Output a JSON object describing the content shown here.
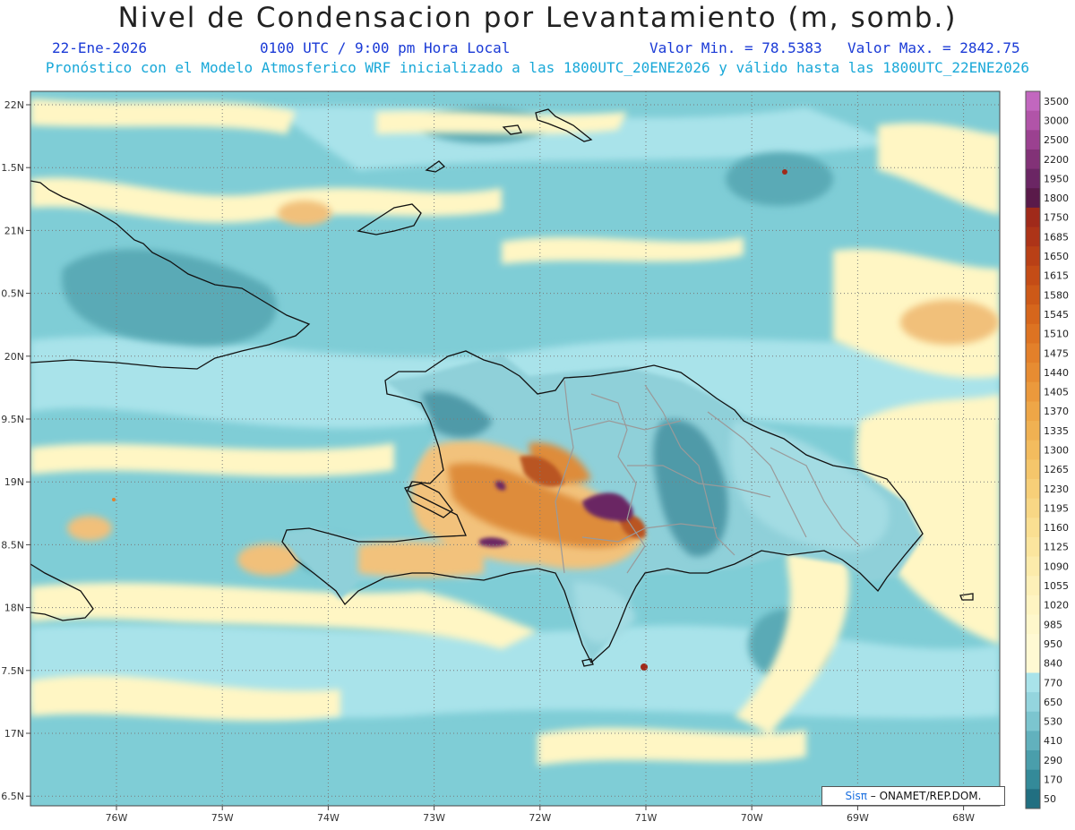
{
  "header": {
    "title": "Nivel de Condensacion por Levantamiento (m, somb.)",
    "date": "22-Ene-2026",
    "time": "0100 UTC / 9:00 pm Hora Local",
    "valor_min": "Valor Min. = 78.5383",
    "valor_max": "Valor Max. = 2842.75",
    "forecast_note": "Pronóstico con el Modelo Atmosferico WRF inicializado a las 1800UTC_20ENE2026 y válido hasta las  1800UTC_22ENE2026"
  },
  "map": {
    "lat_labels": [
      "22N",
      "1.5N",
      "21N",
      "0.5N",
      "20N",
      "9.5N",
      "19N",
      "8.5N",
      "18N",
      "7.5N",
      "17N",
      "6.5N"
    ],
    "lon_labels": [
      "76W",
      "75W",
      "74W",
      "73W",
      "72W",
      "71W",
      "70W",
      "69W",
      "68W"
    ],
    "ocean_color": "#7fcdd6",
    "land_outline_color": "#111111",
    "province_border_color": "#9a9a9a"
  },
  "colorbar": {
    "levels": [
      "3500",
      "3000",
      "2500",
      "2200",
      "1950",
      "1800",
      "1750",
      "1685",
      "1650",
      "1615",
      "1580",
      "1545",
      "1510",
      "1475",
      "1440",
      "1405",
      "1370",
      "1335",
      "1300",
      "1265",
      "1230",
      "1195",
      "1160",
      "1125",
      "1090",
      "1055",
      "1020",
      "985",
      "950",
      "840",
      "770",
      "650",
      "530",
      "410",
      "290",
      "170",
      "50"
    ],
    "colors": [
      "#c267bf",
      "#b154a8",
      "#9b4190",
      "#823277",
      "#6b2664",
      "#5a1a4a",
      "#a02a1a",
      "#ad3418",
      "#b94016",
      "#c44c16",
      "#cd5918",
      "#d6661c",
      "#dd7322",
      "#e3802a",
      "#e78c32",
      "#eb993c",
      "#eea647",
      "#f0b152",
      "#f3bc5e",
      "#f5c66b",
      "#f7cf78",
      "#f8d785",
      "#fadf92",
      "#fbe59e",
      "#fcebab",
      "#fdf0b8",
      "#fef4c2",
      "#fef7cb",
      "#fff9d3",
      "#fff9d3",
      "#a9e3ea",
      "#94d5de",
      "#7cc5cf",
      "#62b1bd",
      "#4a9eab",
      "#348a99",
      "#216f81"
    ]
  },
  "credit": {
    "brand": "Sisπ",
    "org": "– ONAMET/REP.DOM."
  }
}
